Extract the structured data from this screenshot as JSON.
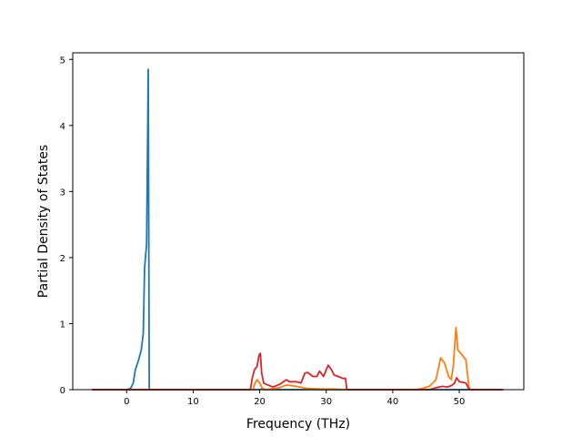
{
  "chart_data": {
    "type": "line",
    "title": "",
    "xlabel": "Frequency (THz)",
    "ylabel": "Partial Density of States",
    "xlim": [
      -8.1,
      59.7
    ],
    "ylim": [
      0,
      5.1
    ],
    "xticks": [
      0,
      10,
      20,
      30,
      40,
      50
    ],
    "yticks": [
      0,
      1,
      2,
      3,
      4,
      5
    ],
    "grid": false,
    "legend": "none",
    "series": [
      {
        "color": "#1f77b4",
        "points": [
          [
            -5.2,
            0
          ],
          [
            0.0,
            0
          ],
          [
            0.6,
            0.02
          ],
          [
            1.0,
            0.1
          ],
          [
            1.3,
            0.3
          ],
          [
            1.8,
            0.45
          ],
          [
            2.2,
            0.6
          ],
          [
            2.5,
            0.85
          ],
          [
            2.7,
            1.85
          ],
          [
            3.0,
            2.2
          ],
          [
            3.25,
            4.85
          ],
          [
            3.4,
            0
          ],
          [
            20.0,
            0
          ],
          [
            20.3,
            0.01
          ],
          [
            20.6,
            0
          ],
          [
            56.6,
            0
          ]
        ]
      },
      {
        "color": "#ff7f0e",
        "points": [
          [
            -5.2,
            0
          ],
          [
            19.0,
            0
          ],
          [
            19.3,
            0.1
          ],
          [
            19.6,
            0.15
          ],
          [
            20.0,
            0.1
          ],
          [
            20.4,
            0.02
          ],
          [
            21.0,
            0
          ],
          [
            23.0,
            0.03
          ],
          [
            24.0,
            0.07
          ],
          [
            25.5,
            0.05
          ],
          [
            27.0,
            0.02
          ],
          [
            29.0,
            0.01
          ],
          [
            31.0,
            0.01
          ],
          [
            33.0,
            0
          ],
          [
            43.5,
            0
          ],
          [
            44.5,
            0.02
          ],
          [
            45.5,
            0.05
          ],
          [
            46.5,
            0.15
          ],
          [
            47.2,
            0.48
          ],
          [
            47.8,
            0.4
          ],
          [
            48.4,
            0.2
          ],
          [
            48.8,
            0.15
          ],
          [
            49.1,
            0.35
          ],
          [
            49.5,
            0.94
          ],
          [
            49.8,
            0.6
          ],
          [
            50.4,
            0.53
          ],
          [
            51.0,
            0.45
          ],
          [
            51.5,
            0
          ],
          [
            56.6,
            0
          ]
        ]
      },
      {
        "color": "#d62728",
        "points": [
          [
            -5.2,
            0
          ],
          [
            18.6,
            0
          ],
          [
            18.9,
            0.18
          ],
          [
            19.2,
            0.3
          ],
          [
            19.6,
            0.35
          ],
          [
            19.9,
            0.52
          ],
          [
            20.1,
            0.55
          ],
          [
            20.3,
            0.25
          ],
          [
            20.6,
            0.1
          ],
          [
            21.0,
            0.08
          ],
          [
            21.5,
            0.06
          ],
          [
            22.0,
            0.04
          ],
          [
            23.0,
            0.08
          ],
          [
            24.0,
            0.15
          ],
          [
            24.5,
            0.12
          ],
          [
            25.5,
            0.12
          ],
          [
            26.2,
            0.1
          ],
          [
            26.8,
            0.25
          ],
          [
            27.2,
            0.26
          ],
          [
            28.0,
            0.2
          ],
          [
            28.6,
            0.2
          ],
          [
            29.0,
            0.28
          ],
          [
            29.6,
            0.2
          ],
          [
            30.0,
            0.3
          ],
          [
            30.3,
            0.37
          ],
          [
            30.8,
            0.3
          ],
          [
            31.2,
            0.22
          ],
          [
            31.8,
            0.2
          ],
          [
            32.5,
            0.17
          ],
          [
            32.9,
            0.17
          ],
          [
            33.1,
            0
          ],
          [
            45.5,
            0
          ],
          [
            46.5,
            0.03
          ],
          [
            47.5,
            0.05
          ],
          [
            48.2,
            0.04
          ],
          [
            48.8,
            0.06
          ],
          [
            49.3,
            0.1
          ],
          [
            49.6,
            0.18
          ],
          [
            50.0,
            0.12
          ],
          [
            50.6,
            0.11
          ],
          [
            51.0,
            0.1
          ],
          [
            51.4,
            0.02
          ],
          [
            51.7,
            0
          ],
          [
            56.6,
            0
          ]
        ]
      }
    ]
  }
}
